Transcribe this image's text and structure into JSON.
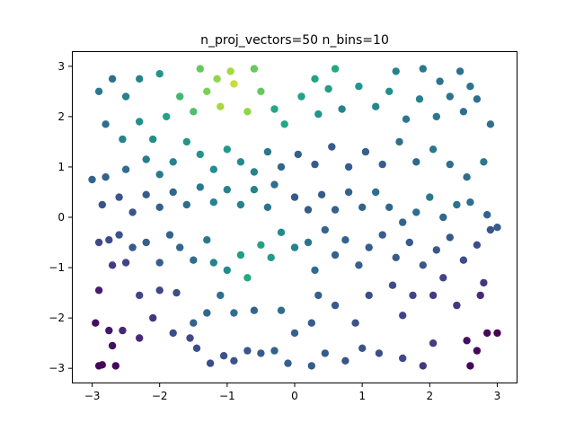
{
  "chart_data": {
    "type": "scatter",
    "title": "n_proj_vectors=50 n_bins=10",
    "xlabel": "",
    "ylabel": "",
    "xlim": [
      -3.3,
      3.3
    ],
    "ylim": [
      -3.3,
      3.3
    ],
    "x_ticks": [
      -3,
      -2,
      -1,
      0,
      1,
      2,
      3
    ],
    "y_ticks": [
      -3,
      -2,
      -1,
      0,
      1,
      2,
      3
    ],
    "x_tick_labels": [
      "−3",
      "−2",
      "−1",
      "0",
      "1",
      "2",
      "3"
    ],
    "y_tick_labels": [
      "−3",
      "−2",
      "−1",
      "0",
      "1",
      "2",
      "3"
    ],
    "grid": false,
    "legend": "none",
    "colormap": "viridis",
    "marker_color_note": "point color encodes a value via the viridis colormap",
    "points": [
      {
        "x": -2.9,
        "y": -2.95,
        "c": 0.02
      },
      {
        "x": -2.85,
        "y": -2.93,
        "c": 0.03
      },
      {
        "x": -2.7,
        "y": -2.55,
        "c": 0.05
      },
      {
        "x": -2.65,
        "y": -2.95,
        "c": 0.03
      },
      {
        "x": -2.3,
        "y": -2.4,
        "c": 0.15
      },
      {
        "x": -2.95,
        "y": -2.1,
        "c": 0.05
      },
      {
        "x": -2.9,
        "y": -1.45,
        "c": 0.1
      },
      {
        "x": -2.75,
        "y": -2.25,
        "c": 0.08
      },
      {
        "x": -2.55,
        "y": -2.25,
        "c": 0.14
      },
      {
        "x": -2.0,
        "y": -1.45,
        "c": 0.25
      },
      {
        "x": -1.75,
        "y": -1.5,
        "c": 0.3
      },
      {
        "x": -2.1,
        "y": -2.0,
        "c": 0.2
      },
      {
        "x": -1.55,
        "y": -2.4,
        "c": 0.28
      },
      {
        "x": -1.45,
        "y": -2.6,
        "c": 0.3
      },
      {
        "x": -1.25,
        "y": -2.9,
        "c": 0.3
      },
      {
        "x": -1.05,
        "y": -2.75,
        "c": 0.33
      },
      {
        "x": -0.9,
        "y": -2.85,
        "c": 0.32
      },
      {
        "x": -0.7,
        "y": -2.65,
        "c": 0.34
      },
      {
        "x": -0.5,
        "y": -2.7,
        "c": 0.36
      },
      {
        "x": -0.1,
        "y": -2.9,
        "c": 0.38
      },
      {
        "x": 0.25,
        "y": -2.95,
        "c": 0.36
      },
      {
        "x": 0.45,
        "y": -2.7,
        "c": 0.35
      },
      {
        "x": 0.75,
        "y": -2.85,
        "c": 0.33
      },
      {
        "x": 1.0,
        "y": -2.6,
        "c": 0.32
      },
      {
        "x": 1.25,
        "y": -2.7,
        "c": 0.3
      },
      {
        "x": 1.6,
        "y": -2.8,
        "c": 0.27
      },
      {
        "x": 1.9,
        "y": -2.95,
        "c": 0.2
      },
      {
        "x": 2.05,
        "y": -2.5,
        "c": 0.22
      },
      {
        "x": 2.6,
        "y": -2.95,
        "c": 0.02
      },
      {
        "x": 2.7,
        "y": -2.65,
        "c": 0.03
      },
      {
        "x": 2.85,
        "y": -2.3,
        "c": 0.03
      },
      {
        "x": 3.0,
        "y": -2.3,
        "c": 0.02
      },
      {
        "x": 2.55,
        "y": -2.45,
        "c": 0.05
      },
      {
        "x": 2.75,
        "y": -1.55,
        "c": 0.15
      },
      {
        "x": 2.8,
        "y": -1.3,
        "c": 0.2
      },
      {
        "x": 2.4,
        "y": -1.75,
        "c": 0.2
      },
      {
        "x": 2.2,
        "y": -1.2,
        "c": 0.25
      },
      {
        "x": 2.05,
        "y": -1.55,
        "c": 0.22
      },
      {
        "x": 1.75,
        "y": -1.55,
        "c": 0.25
      },
      {
        "x": 1.6,
        "y": -1.95,
        "c": 0.25
      },
      {
        "x": 1.45,
        "y": -1.35,
        "c": 0.3
      },
      {
        "x": 1.1,
        "y": -1.55,
        "c": 0.3
      },
      {
        "x": 0.9,
        "y": -2.1,
        "c": 0.32
      },
      {
        "x": 0.6,
        "y": -1.75,
        "c": 0.34
      },
      {
        "x": 0.35,
        "y": -1.55,
        "c": 0.38
      },
      {
        "x": 0.25,
        "y": -2.1,
        "c": 0.36
      },
      {
        "x": 0.0,
        "y": -2.3,
        "c": 0.4
      },
      {
        "x": -0.2,
        "y": -1.85,
        "c": 0.45
      },
      {
        "x": -0.3,
        "y": -2.65,
        "c": 0.4
      },
      {
        "x": -0.6,
        "y": -1.85,
        "c": 0.42
      },
      {
        "x": -0.9,
        "y": -1.9,
        "c": 0.45
      },
      {
        "x": -1.1,
        "y": -1.55,
        "c": 0.45
      },
      {
        "x": -1.3,
        "y": -1.9,
        "c": 0.42
      },
      {
        "x": -1.5,
        "y": -2.1,
        "c": 0.4
      },
      {
        "x": -1.8,
        "y": -2.3,
        "c": 0.3
      },
      {
        "x": -2.3,
        "y": -1.55,
        "c": 0.25
      },
      {
        "x": -2.5,
        "y": -0.9,
        "c": 0.25
      },
      {
        "x": -2.7,
        "y": -0.95,
        "c": 0.22
      },
      {
        "x": -2.9,
        "y": -0.5,
        "c": 0.28
      },
      {
        "x": -2.75,
        "y": -0.45,
        "c": 0.3
      },
      {
        "x": -2.6,
        "y": -0.35,
        "c": 0.32
      },
      {
        "x": -2.4,
        "y": -0.6,
        "c": 0.35
      },
      {
        "x": -2.2,
        "y": -0.5,
        "c": 0.38
      },
      {
        "x": -2.0,
        "y": -0.9,
        "c": 0.38
      },
      {
        "x": -1.85,
        "y": -0.35,
        "c": 0.4
      },
      {
        "x": -1.7,
        "y": -0.6,
        "c": 0.42
      },
      {
        "x": -1.5,
        "y": -0.85,
        "c": 0.45
      },
      {
        "x": -1.3,
        "y": -0.45,
        "c": 0.5
      },
      {
        "x": -1.2,
        "y": -0.9,
        "c": 0.55
      },
      {
        "x": -1.0,
        "y": -1.05,
        "c": 0.6
      },
      {
        "x": -0.8,
        "y": -0.75,
        "c": 0.7
      },
      {
        "x": -0.7,
        "y": -1.2,
        "c": 0.75
      },
      {
        "x": -0.5,
        "y": -0.55,
        "c": 0.72
      },
      {
        "x": -0.35,
        "y": -0.8,
        "c": 0.68
      },
      {
        "x": -0.2,
        "y": -0.3,
        "c": 0.6
      },
      {
        "x": 0.0,
        "y": -0.6,
        "c": 0.55
      },
      {
        "x": 0.2,
        "y": -0.5,
        "c": 0.48
      },
      {
        "x": 0.3,
        "y": -1.05,
        "c": 0.45
      },
      {
        "x": 0.45,
        "y": -0.25,
        "c": 0.42
      },
      {
        "x": 0.6,
        "y": -0.75,
        "c": 0.4
      },
      {
        "x": 0.75,
        "y": -0.45,
        "c": 0.4
      },
      {
        "x": 0.95,
        "y": -0.95,
        "c": 0.38
      },
      {
        "x": 1.1,
        "y": -0.6,
        "c": 0.38
      },
      {
        "x": 1.3,
        "y": -0.35,
        "c": 0.38
      },
      {
        "x": 1.5,
        "y": -0.8,
        "c": 0.36
      },
      {
        "x": 1.7,
        "y": -0.5,
        "c": 0.36
      },
      {
        "x": 1.9,
        "y": -0.95,
        "c": 0.34
      },
      {
        "x": 2.1,
        "y": -0.65,
        "c": 0.34
      },
      {
        "x": 2.3,
        "y": -0.4,
        "c": 0.34
      },
      {
        "x": 2.5,
        "y": -0.85,
        "c": 0.3
      },
      {
        "x": 2.7,
        "y": -0.55,
        "c": 0.3
      },
      {
        "x": 2.9,
        "y": -0.25,
        "c": 0.33
      },
      {
        "x": 3.0,
        "y": -0.2,
        "c": 0.36
      },
      {
        "x": 2.85,
        "y": 0.05,
        "c": 0.4
      },
      {
        "x": 2.6,
        "y": 0.3,
        "c": 0.45
      },
      {
        "x": 2.4,
        "y": 0.25,
        "c": 0.47
      },
      {
        "x": 2.2,
        "y": 0.0,
        "c": 0.42
      },
      {
        "x": 2.0,
        "y": 0.4,
        "c": 0.5
      },
      {
        "x": 1.8,
        "y": 0.1,
        "c": 0.45
      },
      {
        "x": 1.6,
        "y": -0.1,
        "c": 0.4
      },
      {
        "x": 1.4,
        "y": 0.2,
        "c": 0.42
      },
      {
        "x": 1.2,
        "y": 0.5,
        "c": 0.45
      },
      {
        "x": 1.0,
        "y": 0.2,
        "c": 0.4
      },
      {
        "x": 0.8,
        "y": 0.5,
        "c": 0.4
      },
      {
        "x": 0.6,
        "y": 0.15,
        "c": 0.38
      },
      {
        "x": 0.4,
        "y": 0.45,
        "c": 0.36
      },
      {
        "x": 0.2,
        "y": 0.15,
        "c": 0.36
      },
      {
        "x": 0.0,
        "y": 0.4,
        "c": 0.35
      },
      {
        "x": -0.3,
        "y": 0.65,
        "c": 0.45
      },
      {
        "x": -0.4,
        "y": 0.2,
        "c": 0.48
      },
      {
        "x": -0.6,
        "y": 0.55,
        "c": 0.55
      },
      {
        "x": -0.8,
        "y": 0.25,
        "c": 0.55
      },
      {
        "x": -1.0,
        "y": 0.55,
        "c": 0.55
      },
      {
        "x": -1.2,
        "y": 0.3,
        "c": 0.55
      },
      {
        "x": -1.4,
        "y": 0.6,
        "c": 0.5
      },
      {
        "x": -1.6,
        "y": 0.25,
        "c": 0.45
      },
      {
        "x": -1.8,
        "y": 0.5,
        "c": 0.42
      },
      {
        "x": -2.0,
        "y": 0.2,
        "c": 0.38
      },
      {
        "x": -2.2,
        "y": 0.45,
        "c": 0.35
      },
      {
        "x": -2.4,
        "y": 0.1,
        "c": 0.33
      },
      {
        "x": -2.6,
        "y": 0.4,
        "c": 0.33
      },
      {
        "x": -2.85,
        "y": 0.25,
        "c": 0.32
      },
      {
        "x": -3.0,
        "y": 0.75,
        "c": 0.4
      },
      {
        "x": -2.8,
        "y": 0.8,
        "c": 0.4
      },
      {
        "x": -2.5,
        "y": 0.95,
        "c": 0.45
      },
      {
        "x": -2.2,
        "y": 1.15,
        "c": 0.52
      },
      {
        "x": -2.0,
        "y": 0.85,
        "c": 0.5
      },
      {
        "x": -1.8,
        "y": 1.1,
        "c": 0.55
      },
      {
        "x": -1.6,
        "y": 1.5,
        "c": 0.65
      },
      {
        "x": -1.4,
        "y": 1.25,
        "c": 0.65
      },
      {
        "x": -1.2,
        "y": 0.95,
        "c": 0.62
      },
      {
        "x": -1.0,
        "y": 1.35,
        "c": 0.68
      },
      {
        "x": -0.8,
        "y": 1.1,
        "c": 0.6
      },
      {
        "x": -0.6,
        "y": 0.9,
        "c": 0.55
      },
      {
        "x": -0.4,
        "y": 1.3,
        "c": 0.5
      },
      {
        "x": -0.2,
        "y": 1.0,
        "c": 0.42
      },
      {
        "x": 0.05,
        "y": 1.25,
        "c": 0.38
      },
      {
        "x": 0.3,
        "y": 1.05,
        "c": 0.36
      },
      {
        "x": 0.55,
        "y": 1.4,
        "c": 0.36
      },
      {
        "x": 0.8,
        "y": 1.0,
        "c": 0.36
      },
      {
        "x": 1.05,
        "y": 1.3,
        "c": 0.38
      },
      {
        "x": 1.3,
        "y": 1.05,
        "c": 0.38
      },
      {
        "x": 1.55,
        "y": 1.5,
        "c": 0.45
      },
      {
        "x": 1.8,
        "y": 1.1,
        "c": 0.42
      },
      {
        "x": 2.05,
        "y": 1.35,
        "c": 0.5
      },
      {
        "x": 2.3,
        "y": 1.05,
        "c": 0.45
      },
      {
        "x": 2.55,
        "y": 0.8,
        "c": 0.45
      },
      {
        "x": 2.8,
        "y": 1.1,
        "c": 0.5
      },
      {
        "x": -2.8,
        "y": 1.85,
        "c": 0.45
      },
      {
        "x": -2.55,
        "y": 1.55,
        "c": 0.55
      },
      {
        "x": -2.3,
        "y": 1.9,
        "c": 0.62
      },
      {
        "x": -2.1,
        "y": 1.55,
        "c": 0.62
      },
      {
        "x": -1.9,
        "y": 2.0,
        "c": 0.72
      },
      {
        "x": -1.7,
        "y": 2.4,
        "c": 0.8
      },
      {
        "x": -1.5,
        "y": 2.1,
        "c": 0.82
      },
      {
        "x": -1.3,
        "y": 2.5,
        "c": 0.88
      },
      {
        "x": -1.1,
        "y": 2.2,
        "c": 0.92
      },
      {
        "x": -0.9,
        "y": 2.65,
        "c": 0.95
      },
      {
        "x": -0.7,
        "y": 2.1,
        "c": 0.9
      },
      {
        "x": -0.5,
        "y": 2.5,
        "c": 0.85
      },
      {
        "x": -0.3,
        "y": 2.15,
        "c": 0.75
      },
      {
        "x": -0.15,
        "y": 1.85,
        "c": 0.75
      },
      {
        "x": 0.1,
        "y": 2.4,
        "c": 0.72
      },
      {
        "x": 0.35,
        "y": 2.05,
        "c": 0.65
      },
      {
        "x": 0.5,
        "y": 2.55,
        "c": 0.7
      },
      {
        "x": 0.7,
        "y": 2.15,
        "c": 0.55
      },
      {
        "x": 0.95,
        "y": 2.6,
        "c": 0.65
      },
      {
        "x": 1.2,
        "y": 2.2,
        "c": 0.58
      },
      {
        "x": 1.4,
        "y": 2.5,
        "c": 0.62
      },
      {
        "x": 1.65,
        "y": 1.95,
        "c": 0.5
      },
      {
        "x": 1.85,
        "y": 2.35,
        "c": 0.55
      },
      {
        "x": 2.1,
        "y": 2.0,
        "c": 0.5
      },
      {
        "x": 2.3,
        "y": 2.4,
        "c": 0.48
      },
      {
        "x": 2.5,
        "y": 2.1,
        "c": 0.45
      },
      {
        "x": 2.7,
        "y": 2.35,
        "c": 0.45
      },
      {
        "x": 2.9,
        "y": 1.85,
        "c": 0.45
      },
      {
        "x": -2.9,
        "y": 2.5,
        "c": 0.5
      },
      {
        "x": -2.7,
        "y": 2.75,
        "c": 0.45
      },
      {
        "x": -2.5,
        "y": 2.4,
        "c": 0.55
      },
      {
        "x": -2.3,
        "y": 2.75,
        "c": 0.55
      },
      {
        "x": -2.0,
        "y": 2.85,
        "c": 0.65
      },
      {
        "x": -1.4,
        "y": 2.95,
        "c": 0.85
      },
      {
        "x": -1.15,
        "y": 2.75,
        "c": 0.9
      },
      {
        "x": -0.95,
        "y": 2.9,
        "c": 0.92
      },
      {
        "x": -0.6,
        "y": 2.95,
        "c": 0.85
      },
      {
        "x": 0.3,
        "y": 2.75,
        "c": 0.72
      },
      {
        "x": 0.6,
        "y": 2.95,
        "c": 0.75
      },
      {
        "x": 1.5,
        "y": 2.9,
        "c": 0.55
      },
      {
        "x": 1.9,
        "y": 2.95,
        "c": 0.5
      },
      {
        "x": 2.15,
        "y": 2.7,
        "c": 0.48
      },
      {
        "x": 2.45,
        "y": 2.9,
        "c": 0.45
      },
      {
        "x": 2.6,
        "y": 2.6,
        "c": 0.48
      }
    ]
  }
}
